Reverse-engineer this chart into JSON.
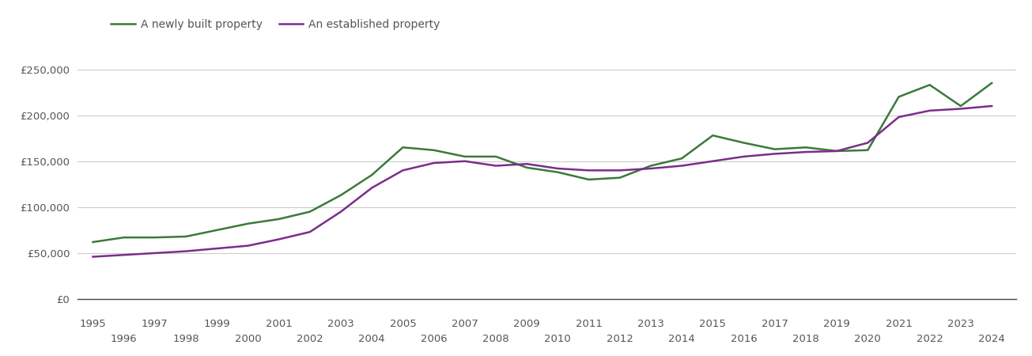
{
  "newly_built": {
    "years": [
      1995,
      1996,
      1997,
      1998,
      1999,
      2000,
      2001,
      2002,
      2003,
      2004,
      2005,
      2006,
      2007,
      2008,
      2009,
      2010,
      2011,
      2012,
      2013,
      2014,
      2015,
      2016,
      2017,
      2018,
      2019,
      2020,
      2021,
      2022,
      2023,
      2024
    ],
    "values": [
      62000,
      67000,
      67000,
      68000,
      75000,
      82000,
      87000,
      95000,
      113000,
      135000,
      165000,
      162000,
      155000,
      155000,
      143000,
      138000,
      130000,
      132000,
      145000,
      153000,
      178000,
      170000,
      163000,
      165000,
      161000,
      162000,
      220000,
      233000,
      210000,
      235000
    ]
  },
  "established": {
    "years": [
      1995,
      1996,
      1997,
      1998,
      1999,
      2000,
      2001,
      2002,
      2003,
      2004,
      2005,
      2006,
      2007,
      2008,
      2009,
      2010,
      2011,
      2012,
      2013,
      2014,
      2015,
      2016,
      2017,
      2018,
      2019,
      2020,
      2021,
      2022,
      2023,
      2024
    ],
    "values": [
      46000,
      48000,
      50000,
      52000,
      55000,
      58000,
      65000,
      73000,
      95000,
      121000,
      140000,
      148000,
      150000,
      145000,
      147000,
      142000,
      140000,
      140000,
      142000,
      145000,
      150000,
      155000,
      158000,
      160000,
      161000,
      170000,
      198000,
      205000,
      207000,
      210000
    ]
  },
  "newly_built_color": "#3a7a3a",
  "established_color": "#7b2d8b",
  "newly_built_label": "A newly built property",
  "established_label": "An established property",
  "ylim": [
    0,
    275000
  ],
  "yticks": [
    0,
    50000,
    100000,
    150000,
    200000,
    250000
  ],
  "ytick_labels": [
    "£0",
    "£50,000",
    "£100,000",
    "£150,000",
    "£200,000",
    "£250,000"
  ],
  "xlim": [
    1994.5,
    2024.8
  ],
  "xticks_row1": [
    1995,
    1997,
    1999,
    2001,
    2003,
    2005,
    2007,
    2009,
    2011,
    2013,
    2015,
    2017,
    2019,
    2021,
    2023
  ],
  "xticks_row2": [
    1996,
    1998,
    2000,
    2002,
    2004,
    2006,
    2008,
    2010,
    2012,
    2014,
    2016,
    2018,
    2020,
    2022,
    2024
  ],
  "background_color": "#ffffff",
  "grid_color": "#cccccc",
  "line_width": 1.8,
  "tick_fontsize": 9.5,
  "tick_color": "#555555"
}
